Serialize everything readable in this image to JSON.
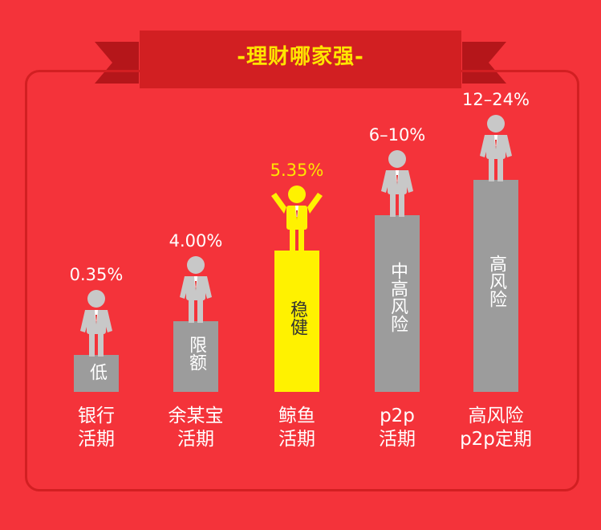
{
  "header": {
    "title": "-理财哪家强-"
  },
  "colors": {
    "background": "#f4333a",
    "banner": "#d21f22",
    "title_text": "#ffe500",
    "bar_gray": "#9c9c9c",
    "person_gray": "#c8c8c8",
    "highlight": "#fff200"
  },
  "chart_data": {
    "type": "bar",
    "title": "-理财哪家强-",
    "categories": [
      [
        "银行",
        "活期"
      ],
      [
        "余某宝",
        "活期"
      ],
      [
        "鲸鱼",
        "活期"
      ],
      [
        "p2p",
        "活期"
      ],
      [
        "高风险",
        "p2p定期"
      ]
    ],
    "value_labels": [
      "0.35%",
      "4.00%",
      "5.35%",
      "6–10%",
      "12–24%"
    ],
    "bar_labels": [
      "低",
      "限额",
      "稳健",
      "中高风险",
      "高风险"
    ],
    "bar_levels": [
      1,
      2,
      4,
      5,
      6
    ],
    "highlight_index": 2
  }
}
